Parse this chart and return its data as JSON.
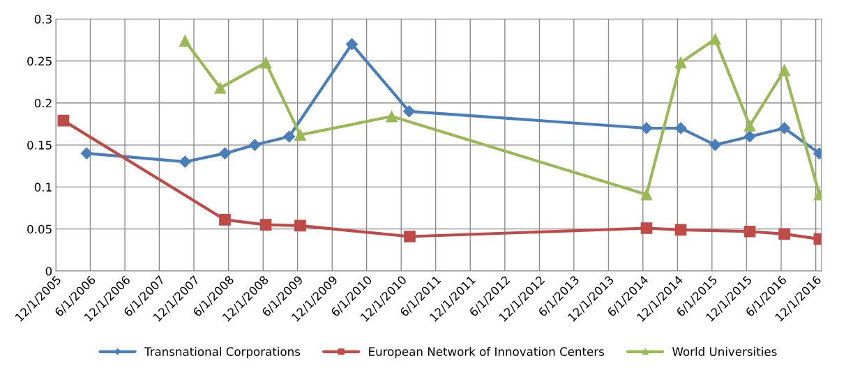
{
  "chart_data": {
    "type": "line",
    "xlim": [
      "2005-12-01",
      "2016-12-31"
    ],
    "ylim": [
      0,
      0.3
    ],
    "yticks": [
      0,
      0.05,
      0.1,
      0.15,
      0.2,
      0.25,
      0.3
    ],
    "xticks": [
      {
        "value": "2005-12-01",
        "label": "12/1/2005"
      },
      {
        "value": "2006-06-01",
        "label": "6/1/2006"
      },
      {
        "value": "2006-12-01",
        "label": "12/1/2006"
      },
      {
        "value": "2007-06-01",
        "label": "6/1/2007"
      },
      {
        "value": "2007-12-01",
        "label": "12/1/2007"
      },
      {
        "value": "2008-06-01",
        "label": "6/1/2008"
      },
      {
        "value": "2008-12-01",
        "label": "12/1/2008"
      },
      {
        "value": "2009-06-01",
        "label": "6/1/2009"
      },
      {
        "value": "2009-12-01",
        "label": "12/1/2009"
      },
      {
        "value": "2010-06-01",
        "label": "6/1/2010"
      },
      {
        "value": "2010-12-01",
        "label": "12/1/2010"
      },
      {
        "value": "2011-06-01",
        "label": "6/1/2011"
      },
      {
        "value": "2011-12-01",
        "label": "12/1/2011"
      },
      {
        "value": "2012-06-01",
        "label": "6/1/2012"
      },
      {
        "value": "2012-12-01",
        "label": "12/1/2012"
      },
      {
        "value": "2013-06-01",
        "label": "6/1/2013"
      },
      {
        "value": "2013-12-01",
        "label": "12/1/2013"
      },
      {
        "value": "2014-06-01",
        "label": "6/1/2014"
      },
      {
        "value": "2014-12-01",
        "label": "12/1/2014"
      },
      {
        "value": "2015-06-01",
        "label": "6/1/2015"
      },
      {
        "value": "2015-12-01",
        "label": "12/1/2015"
      },
      {
        "value": "2016-06-01",
        "label": "6/1/2016"
      },
      {
        "value": "2016-12-01",
        "label": "12/1/2016"
      }
    ],
    "grid": true,
    "legend": "bottom",
    "line_style": "solid",
    "series": [
      {
        "name": "Transnational Corporations",
        "color": "#4a7ebb",
        "marker": "diamond",
        "x": [
          "2006-05-13",
          "2007-10-15",
          "2008-05-13",
          "2008-10-18",
          "2009-04-18",
          "2010-03-15",
          "2011-01-12",
          "2014-06-20",
          "2014-12-18",
          "2015-06-18",
          "2015-12-18",
          "2016-06-18",
          "2016-12-20"
        ],
        "values": [
          0.14,
          0.13,
          0.14,
          0.15,
          0.16,
          0.27,
          0.19,
          0.17,
          0.17,
          0.15,
          0.16,
          0.17,
          0.14
        ]
      },
      {
        "name": "European Network of Innovation Centers",
        "color": "#be4b48",
        "marker": "square",
        "x": [
          "2006-01-10",
          "2008-05-13",
          "2008-12-15",
          "2009-06-15",
          "2011-01-15",
          "2014-06-20",
          "2014-12-18",
          "2015-12-18",
          "2016-06-18",
          "2016-12-20"
        ],
        "values": [
          0.179,
          0.061,
          0.055,
          0.054,
          0.041,
          0.051,
          0.049,
          0.047,
          0.044,
          0.038
        ]
      },
      {
        "name": "World Universities",
        "color": "#98b954",
        "marker": "triangle",
        "x": [
          "2007-10-15",
          "2008-04-18",
          "2008-12-15",
          "2009-06-15",
          "2010-10-12",
          "2014-06-20",
          "2014-12-18",
          "2015-06-18",
          "2015-12-18",
          "2016-06-18",
          "2016-12-20"
        ],
        "values": [
          0.274,
          0.218,
          0.248,
          0.162,
          0.184,
          0.091,
          0.248,
          0.276,
          0.173,
          0.239,
          0.091
        ]
      }
    ]
  }
}
